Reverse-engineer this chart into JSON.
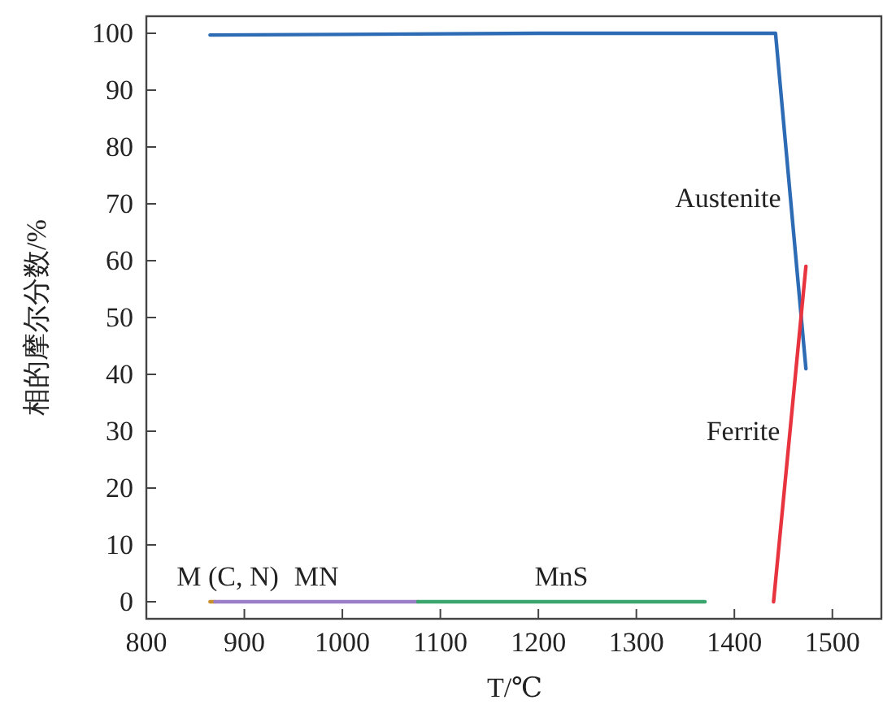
{
  "chart_data": {
    "type": "line",
    "xlabel": "T/℃",
    "ylabel": "相的摩尔分数/%",
    "series": [
      {
        "name": "Austenite",
        "color": "#2d6bb5",
        "x": [
          865,
          1000,
          1200,
          1442,
          1473
        ],
        "values": [
          99.7,
          99.8,
          100,
          100,
          41
        ]
      },
      {
        "name": "Ferrite",
        "color": "#e8343f",
        "x": [
          1440,
          1473
        ],
        "values": [
          0,
          59
        ]
      },
      {
        "name": "M (C, N)",
        "color": "#c8902a",
        "x": [
          865,
          870
        ],
        "values": [
          0,
          0
        ]
      },
      {
        "name": "MN",
        "color": "#9b7ec8",
        "x": [
          870,
          1077
        ],
        "values": [
          0,
          0
        ]
      },
      {
        "name": "MnS",
        "color": "#3aa66e",
        "x": [
          1077,
          1370
        ],
        "values": [
          0,
          0
        ]
      }
    ],
    "xlim": [
      800,
      1550
    ],
    "ylim": [
      -3,
      103
    ],
    "xticks": [
      800,
      900,
      1000,
      1100,
      1200,
      1300,
      1400,
      1500
    ],
    "yticks": [
      0,
      10,
      20,
      30,
      40,
      50,
      60,
      70,
      80,
      90,
      100
    ],
    "grid": false,
    "marker": "none",
    "line_style": "solid"
  }
}
